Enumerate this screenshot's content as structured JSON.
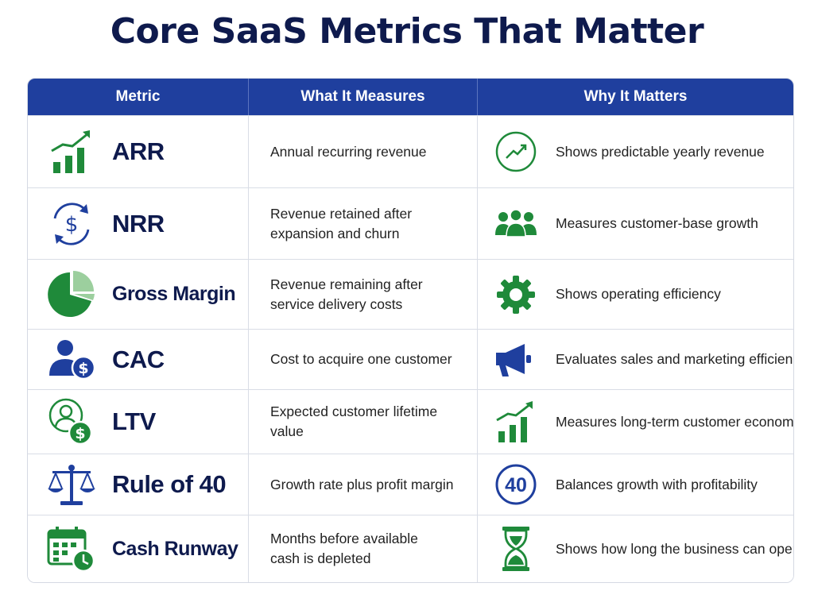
{
  "title": "Core SaaS Metrics That Matter",
  "columns": {
    "metric": "Metric",
    "measures": "What It Measures",
    "why": "Why It Matters"
  },
  "rows": [
    {
      "metric": "ARR",
      "metric_icon": "bar-chart-up-icon",
      "measures_line1": "Annual recurring revenue",
      "measures_line2": "",
      "why_icon": "trend-circle-icon",
      "why": "Shows predictable yearly revenue"
    },
    {
      "metric": "NRR",
      "metric_icon": "dollar-cycle-icon",
      "measures_line1": "Revenue retained after",
      "measures_line2": "expansion and churn",
      "why_icon": "users-group-icon",
      "why": "Measures customer-base growth"
    },
    {
      "metric": "Gross Margin",
      "metric_icon": "pie-chart-icon",
      "measures_line1": "Revenue remaining after",
      "measures_line2": "service delivery costs",
      "why_icon": "gear-icon",
      "why": "Shows operating efficiency"
    },
    {
      "metric": "CAC",
      "metric_icon": "user-dollar-icon",
      "measures_line1": "Cost to acquire one customer",
      "measures_line2": "",
      "why_icon": "megaphone-icon",
      "why": "Evaluates sales and marketing efficiency"
    },
    {
      "metric": "LTV",
      "metric_icon": "user-circle-dollar-icon",
      "measures_line1": "Expected customer lifetime value",
      "measures_line2": "",
      "why_icon": "bar-chart-up-icon",
      "why": "Measures long-term customer economics"
    },
    {
      "metric": "Rule of 40",
      "metric_icon": "scale-icon",
      "measures_line1": "Growth rate plus profit margin",
      "measures_line2": "",
      "why_icon": "forty-badge-icon",
      "why_badge": "40",
      "why": "Balances growth with profitability"
    },
    {
      "metric": "Cash Runway",
      "metric_icon": "calendar-clock-icon",
      "measures_line1": "Months before available",
      "measures_line2": "cash is depleted",
      "why_icon": "hourglass-icon",
      "why": "Shows how long the business can operate"
    }
  ],
  "colors": {
    "header": "#1f3f9e",
    "title": "#0e1a4d",
    "green": "#1f8a3a",
    "blue": "#1f3f9e"
  }
}
